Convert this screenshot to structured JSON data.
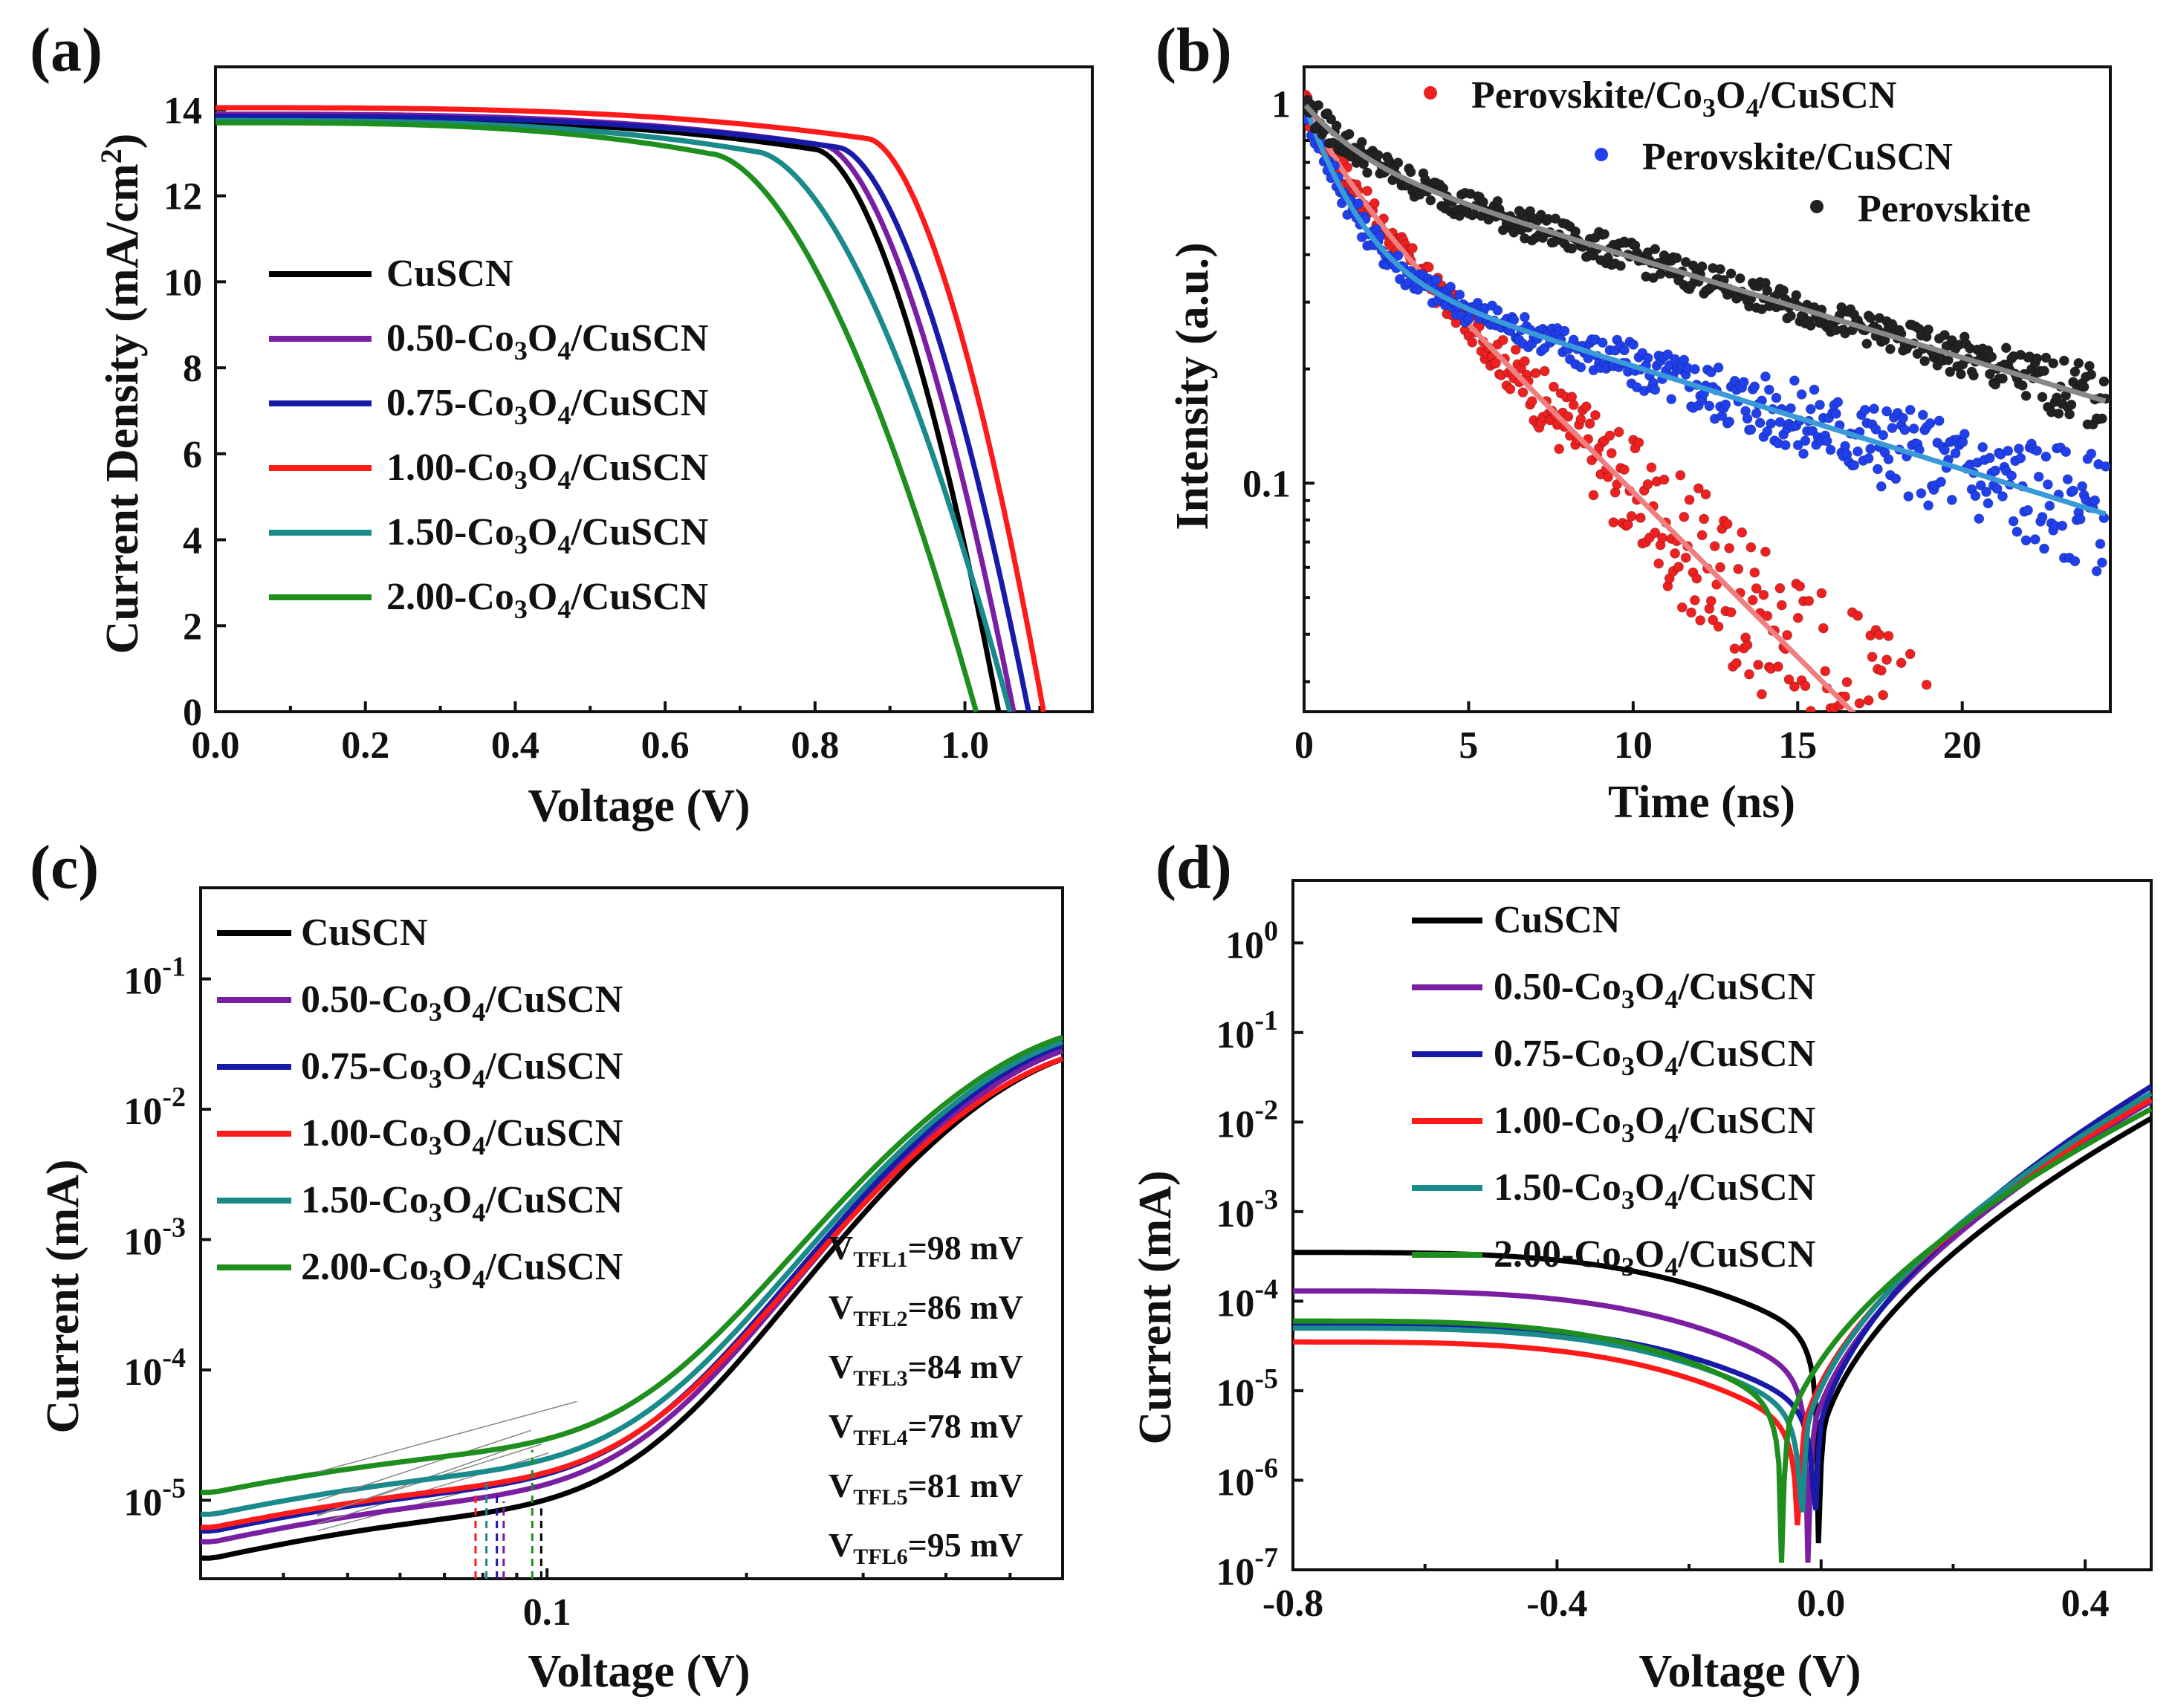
{
  "chart_data": [
    {
      "panel": "(a)",
      "type": "line",
      "xlabel": "Voltage (V)",
      "ylabel": "Current Density (mA/cm²)",
      "xlim": [
        0,
        1.17
      ],
      "ylim": [
        0,
        15
      ],
      "x_ticks": [
        "0.0",
        "0.2",
        "0.4",
        "0.6",
        "0.8",
        "1.0"
      ],
      "y_ticks": [
        "0",
        "2",
        "4",
        "6",
        "8",
        "10",
        "12",
        "14"
      ],
      "legend_position": "left-middle",
      "series": [
        {
          "name": "CuSCN",
          "color": "#000000",
          "jsc": 13.8,
          "voc": 1.045,
          "knee": 0.8
        },
        {
          "name": "0.50-Co3O4/CuSCN",
          "color": "#7b1fa2",
          "jsc": 13.9,
          "voc": 1.065,
          "knee": 0.81
        },
        {
          "name": "0.75-Co3O4/CuSCN",
          "color": "#1a1aa8",
          "jsc": 13.85,
          "voc": 1.085,
          "knee": 0.83
        },
        {
          "name": "1.00-Co3O4/CuSCN",
          "color": "#ff1a1a",
          "jsc": 14.05,
          "voc": 1.105,
          "knee": 0.87
        },
        {
          "name": "1.50-Co3O4/CuSCN",
          "color": "#1a8a8a",
          "jsc": 13.75,
          "voc": 1.06,
          "knee": 0.72
        },
        {
          "name": "2.00-Co3O4/CuSCN",
          "color": "#1e8f1e",
          "jsc": 13.7,
          "voc": 1.015,
          "knee": 0.66
        }
      ]
    },
    {
      "panel": "(b)",
      "type": "scatter",
      "xlabel": "Time (ns)",
      "ylabel": "Intensity (a.u.)",
      "xlim": [
        0,
        24.5
      ],
      "ylim_log": [
        0.025,
        1.25
      ],
      "y_scale": "log",
      "x_ticks": [
        "0",
        "5",
        "10",
        "15",
        "20"
      ],
      "y_ticks": [
        "1",
        "0.1"
      ],
      "legend_position": "top-right",
      "series": [
        {
          "name": "Perovskite/Co3O4/CuSCN",
          "color": "#ee2020",
          "fit_color": "#f08080",
          "tau1_ns": 1.2,
          "tau2_ns": 5.0,
          "a1": 0.3
        },
        {
          "name": "Perovskite/CuSCN",
          "color": "#2040ee",
          "fit_color": "#3a9ad9",
          "tau1_ns": 1.2,
          "tau2_ns": 16.0,
          "a1": 0.62
        },
        {
          "name": "Perovskite",
          "color": "#222222",
          "fit_color": "#888888",
          "tau1_ns": 1.5,
          "tau2_ns": 16.5,
          "a1": 0.28
        }
      ]
    },
    {
      "panel": "(c)",
      "type": "line",
      "xlabel": "Voltage (V)",
      "ylabel": "Current (mA)",
      "x_scale": "log",
      "y_scale": "log",
      "xlim_log": [
        0.03,
        0.6
      ],
      "ylim_log": [
        2.5e-06,
        0.5
      ],
      "x_ticks": [
        "0.1"
      ],
      "y_ticks": [
        "10-1",
        "10-2",
        "10-3",
        "10-4",
        "10-5"
      ],
      "legend_position": "top-left",
      "series": [
        {
          "name": "CuSCN",
          "color": "#000000",
          "i_start": 3.6e-06,
          "i_end": 0.026,
          "v_tfl_mv": 98
        },
        {
          "name": "0.50-Co3O4/CuSCN",
          "color": "#7b1fa2",
          "i_start": 4.8e-06,
          "i_end": 0.03,
          "v_tfl_mv": 86
        },
        {
          "name": "0.75-Co3O4/CuSCN",
          "color": "#1a1aa8",
          "i_start": 5.8e-06,
          "i_end": 0.033,
          "v_tfl_mv": 84
        },
        {
          "name": "1.00-Co3O4/CuSCN",
          "color": "#ff1a1a",
          "i_start": 6.2e-06,
          "i_end": 0.026,
          "v_tfl_mv": 78
        },
        {
          "name": "1.50-Co3O4/CuSCN",
          "color": "#1a8a8a",
          "i_start": 7.8e-06,
          "i_end": 0.035,
          "v_tfl_mv": 81
        },
        {
          "name": "2.00-Co3O4/CuSCN",
          "color": "#1e8f1e",
          "i_start": 1.15e-05,
          "i_end": 0.038,
          "v_tfl_mv": 95
        }
      ],
      "annotations": [
        {
          "main": "V",
          "sub": "TFL1",
          "rest": "=98 mV",
          "color": "#111111"
        },
        {
          "main": "V",
          "sub": "TFL2",
          "rest": "=86 mV",
          "color": "#7b1fa2"
        },
        {
          "main": "V",
          "sub": "TFL3",
          "rest": "=84 mV",
          "color": "#1a1aa8"
        },
        {
          "main": "V",
          "sub": "TFL4",
          "rest": "=78 mV",
          "color": "#ff1a1a"
        },
        {
          "main": "V",
          "sub": "TFL5",
          "rest": "=81 mV",
          "color": "#1a8a8a"
        },
        {
          "main": "V",
          "sub": "TFL6",
          "rest": "=95 mV",
          "color": "#1e8f1e"
        }
      ]
    },
    {
      "panel": "(d)",
      "type": "line",
      "xlabel": "Voltage (V)",
      "ylabel": "Current (mA)",
      "y_scale": "log",
      "xlim": [
        -0.8,
        0.5
      ],
      "ylim_log": [
        1e-07,
        5
      ],
      "x_ticks": [
        "-0.8",
        "-0.4",
        "0.0",
        "0.4"
      ],
      "y_ticks": [
        "10^0",
        "10-1",
        "10-2",
        "10-3",
        "10-4",
        "10-5",
        "10-6",
        "10-7"
      ],
      "legend_position": "top-left",
      "series": [
        {
          "name": "CuSCN",
          "color": "#000000",
          "i_neg": 0.00035,
          "v_min": -0.005,
          "i_pos": 0.011
        },
        {
          "name": "0.50-Co3O4/CuSCN",
          "color": "#7b1fa2",
          "i_neg": 0.00013,
          "v_min": -0.02,
          "i_pos": 0.017
        },
        {
          "name": "0.75-Co3O4/CuSCN",
          "color": "#1a1aa8",
          "i_neg": 5.5e-05,
          "v_min": -0.01,
          "i_pos": 0.025
        },
        {
          "name": "1.00-Co3O4/CuSCN",
          "color": "#ff1a1a",
          "i_neg": 3.5e-05,
          "v_min": -0.035,
          "i_pos": 0.018
        },
        {
          "name": "1.50-Co3O4/CuSCN",
          "color": "#1a8a8a",
          "i_neg": 5e-05,
          "v_min": -0.03,
          "i_pos": 0.021
        },
        {
          "name": "2.00-Co3O4/CuSCN",
          "color": "#1e8f1e",
          "i_neg": 6e-05,
          "v_min": -0.06,
          "i_pos": 0.014
        }
      ]
    }
  ]
}
